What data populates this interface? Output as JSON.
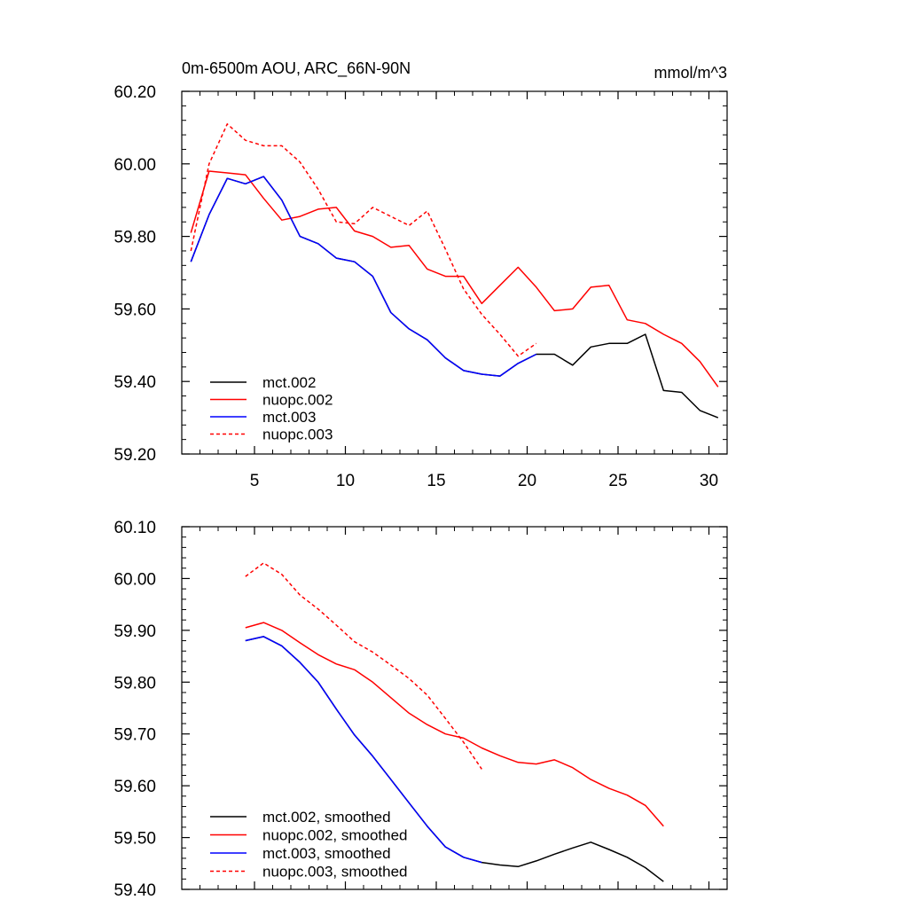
{
  "chart_data": [
    {
      "type": "line",
      "title_left": "0m-6500m AOU, ARC_66N-90N",
      "title_right": "mmol/m^3",
      "xlim": [
        1,
        31
      ],
      "ylim": [
        59.2,
        60.2
      ],
      "xticks": [
        5,
        10,
        15,
        20,
        25,
        30
      ],
      "xtick_labels": [
        "5",
        "10",
        "15",
        "20",
        "25",
        "30"
      ],
      "yticks": [
        59.2,
        59.4,
        59.6,
        59.8,
        60.0,
        60.2
      ],
      "ytick_labels": [
        "59.20",
        "59.40",
        "59.60",
        "59.80",
        "60.00",
        "60.20"
      ],
      "x_minor_step": 1,
      "y_minor_step": 0.04,
      "legend_position": "lower-left",
      "series": [
        {
          "name": "mct.002",
          "color": "#000000",
          "dash": "solid",
          "x": [
            1.5,
            2.5,
            3.5,
            4.5,
            5.5,
            6.5,
            7.5,
            8.5,
            9.5,
            10.5,
            11.5,
            12.5,
            13.5,
            14.5,
            15.5,
            16.5,
            17.5,
            18.5,
            19.5,
            20.5,
            21.5,
            22.5,
            23.5,
            24.5,
            25.5,
            26.5,
            27.5,
            28.5,
            29.5,
            30.5
          ],
          "y": [
            59.73,
            59.86,
            59.96,
            59.945,
            59.965,
            59.9,
            59.8,
            59.78,
            59.74,
            59.73,
            59.69,
            59.59,
            59.545,
            59.515,
            59.465,
            59.43,
            59.42,
            59.415,
            59.45,
            59.475,
            59.475,
            59.445,
            59.495,
            59.505,
            59.505,
            59.53,
            59.375,
            59.37,
            59.32,
            59.3
          ]
        },
        {
          "name": "nuopc.002",
          "color": "#ff0000",
          "dash": "solid",
          "x": [
            1.5,
            2.5,
            3.5,
            4.5,
            5.5,
            6.5,
            7.5,
            8.5,
            9.5,
            10.5,
            11.5,
            12.5,
            13.5,
            14.5,
            15.5,
            16.5,
            17.5,
            18.5,
            19.5,
            20.5,
            21.5,
            22.5,
            23.5,
            24.5,
            25.5,
            26.5,
            27.5,
            28.5,
            29.5,
            30.5
          ],
          "y": [
            59.81,
            59.98,
            59.975,
            59.97,
            59.905,
            59.845,
            59.855,
            59.875,
            59.88,
            59.815,
            59.8,
            59.77,
            59.775,
            59.71,
            59.69,
            59.69,
            59.615,
            59.665,
            59.715,
            59.66,
            59.595,
            59.6,
            59.66,
            59.665,
            59.57,
            59.56,
            59.53,
            59.505,
            59.455,
            59.385
          ]
        },
        {
          "name": "mct.003",
          "color": "#0000ff",
          "dash": "solid",
          "x": [
            1.5,
            2.5,
            3.5,
            4.5,
            5.5,
            6.5,
            7.5,
            8.5,
            9.5,
            10.5,
            11.5,
            12.5,
            13.5,
            14.5,
            15.5,
            16.5,
            17.5,
            18.5,
            19.5,
            20.5
          ],
          "y": [
            59.73,
            59.86,
            59.96,
            59.945,
            59.965,
            59.9,
            59.8,
            59.78,
            59.74,
            59.73,
            59.69,
            59.59,
            59.545,
            59.515,
            59.465,
            59.43,
            59.42,
            59.415,
            59.45,
            59.475
          ]
        },
        {
          "name": "nuopc.003",
          "color": "#ff0000",
          "dash": "dashed",
          "x": [
            1.5,
            2.5,
            3.5,
            4.5,
            5.5,
            6.5,
            7.5,
            8.5,
            9.5,
            10.5,
            11.5,
            12.5,
            13.5,
            14.5,
            15.5,
            16.5,
            17.5,
            18.5,
            19.5,
            20.5
          ],
          "y": [
            59.76,
            60.0,
            60.11,
            60.065,
            60.05,
            60.05,
            60.005,
            59.93,
            59.84,
            59.835,
            59.88,
            59.855,
            59.83,
            59.87,
            59.765,
            59.655,
            59.585,
            59.53,
            59.47,
            59.505
          ]
        }
      ]
    },
    {
      "type": "line",
      "xlim": [
        1,
        31
      ],
      "ylim": [
        59.4,
        60.1
      ],
      "xticks": [
        5,
        10,
        15,
        20,
        25,
        30
      ],
      "xtick_labels": [],
      "yticks": [
        59.4,
        59.5,
        59.6,
        59.7,
        59.8,
        59.9,
        60.0,
        60.1
      ],
      "ytick_labels": [
        "59.40",
        "59.50",
        "59.60",
        "59.70",
        "59.80",
        "59.90",
        "60.00",
        "60.10"
      ],
      "x_minor_step": 1,
      "y_minor_step": 0.02,
      "legend_position": "lower-left",
      "series": [
        {
          "name": "mct.002, smoothed",
          "color": "#000000",
          "dash": "solid",
          "x": [
            4.5,
            5.5,
            6.5,
            7.5,
            8.5,
            9.5,
            10.5,
            11.5,
            12.5,
            13.5,
            14.5,
            15.5,
            16.5,
            17.5,
            18.5,
            19.5,
            20.5,
            21.5,
            22.5,
            23.5,
            24.5,
            25.5,
            26.5,
            27.5
          ],
          "y": [
            59.88,
            59.888,
            59.87,
            59.838,
            59.8,
            59.748,
            59.698,
            59.657,
            59.612,
            59.567,
            59.522,
            59.482,
            59.462,
            59.452,
            59.447,
            59.444,
            59.455,
            59.468,
            59.48,
            59.491,
            59.477,
            59.462,
            59.442,
            59.415
          ]
        },
        {
          "name": "nuopc.002, smoothed",
          "color": "#ff0000",
          "dash": "solid",
          "x": [
            4.5,
            5.5,
            6.5,
            7.5,
            8.5,
            9.5,
            10.5,
            11.5,
            12.5,
            13.5,
            14.5,
            15.5,
            16.5,
            17.5,
            18.5,
            19.5,
            20.5,
            21.5,
            22.5,
            23.5,
            24.5,
            25.5,
            26.5,
            27.5
          ],
          "y": [
            59.905,
            59.915,
            59.9,
            59.876,
            59.853,
            59.835,
            59.824,
            59.8,
            59.77,
            59.74,
            59.718,
            59.7,
            59.692,
            59.673,
            59.658,
            59.645,
            59.642,
            59.65,
            59.635,
            59.612,
            59.595,
            59.582,
            59.562,
            59.522
          ]
        },
        {
          "name": "mct.003, smoothed",
          "color": "#0000ff",
          "dash": "solid",
          "x": [
            4.5,
            5.5,
            6.5,
            7.5,
            8.5,
            9.5,
            10.5,
            11.5,
            12.5,
            13.5,
            14.5,
            15.5,
            16.5,
            17.5
          ],
          "y": [
            59.88,
            59.888,
            59.87,
            59.838,
            59.8,
            59.748,
            59.698,
            59.657,
            59.612,
            59.567,
            59.522,
            59.482,
            59.462,
            59.452
          ]
        },
        {
          "name": "nuopc.003, smoothed",
          "color": "#ff0000",
          "dash": "dashed",
          "x": [
            4.5,
            5.5,
            6.5,
            7.5,
            8.5,
            9.5,
            10.5,
            11.5,
            12.5,
            13.5,
            14.5,
            15.5,
            16.5,
            17.5
          ],
          "y": [
            60.004,
            60.03,
            60.008,
            59.968,
            59.941,
            59.91,
            59.878,
            59.858,
            59.833,
            59.807,
            59.775,
            59.73,
            59.684,
            59.632
          ]
        }
      ]
    }
  ]
}
